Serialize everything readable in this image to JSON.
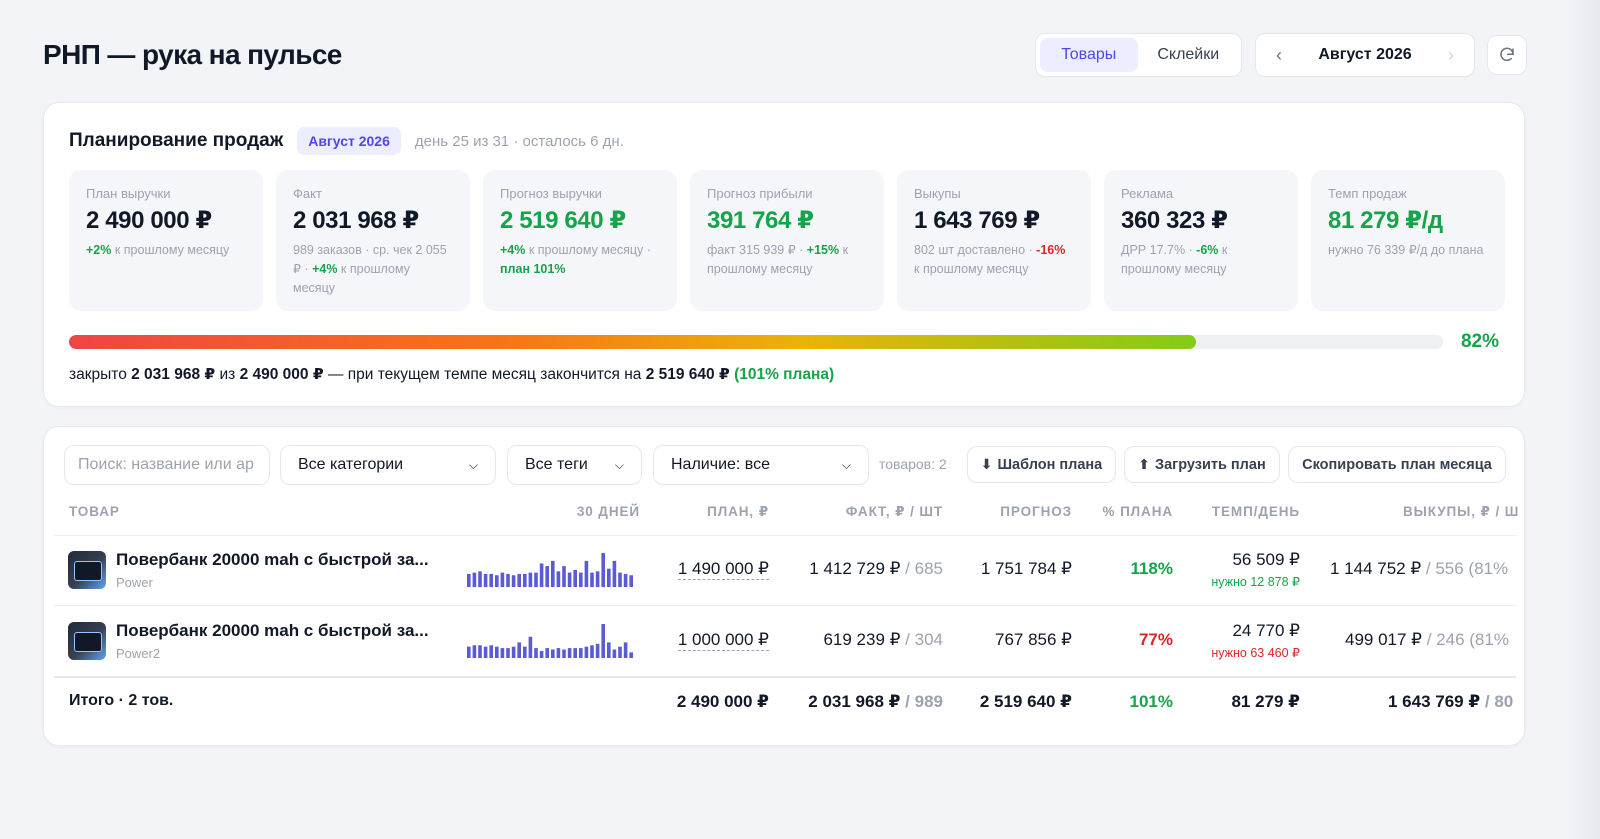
{
  "header": {
    "title": "РНП — рука на пульсе",
    "tabs": [
      {
        "label": "Товары",
        "active": true
      },
      {
        "label": "Склейки",
        "active": false
      }
    ],
    "month": {
      "prev": "‹",
      "label": "Август 2026",
      "next": "›"
    },
    "refresh_icon": "refresh-icon"
  },
  "plan": {
    "title": "Планирование продаж",
    "badge": "Август 2026",
    "subtitle": "день 25 из 31 · осталось 6 дн.",
    "kpis": {
      "plan": {
        "label": "План выручки",
        "value": "2 490 000 ₽",
        "d1": "+2%",
        "t1": " к прошлому месяцу"
      },
      "fact": {
        "label": "Факт",
        "value": "2 031 968 ₽",
        "t1": "989 заказов · ср. чек 2 055 ₽ · ",
        "d1": "+4%",
        "t2": " к прошлому месяцу"
      },
      "forecast": {
        "label": "Прогноз выручки",
        "value": "2 519 640 ₽",
        "d1": "+4%",
        "t1": " к прошлому месяцу · ",
        "d2": "план 101%"
      },
      "profit": {
        "label": "Прогноз прибыли",
        "value": "391 764 ₽",
        "t1": "факт 315 939 ₽ · ",
        "d1": "+15%",
        "t2": " к прошлому месяцу"
      },
      "buyouts": {
        "label": "Выкупы",
        "value": "1 643 769 ₽",
        "t1": "802 шт доставлено · ",
        "d1": "-16%",
        "t2": " к прошлому месяцу"
      },
      "ads": {
        "label": "Реклама",
        "value": "360 323 ₽",
        "t1": "ДРР 17.7% · ",
        "d1": "-6%",
        "t2": " к прошлому месяцу"
      },
      "pace": {
        "label": "Темп продаж",
        "value": "81 279 ₽/д",
        "t1": "нужно 76 339 ₽/д до плана"
      }
    },
    "progress": {
      "percent": 82,
      "percent_label": "82%",
      "t1": "закрыто ",
      "v1": "2 031 968 ₽",
      "t2": " из ",
      "v2": "2 490 000 ₽",
      "t3": " — при текущем темпе месяц закончится на ",
      "v3": "2 519 640 ₽",
      "v4": "(101% плана)"
    }
  },
  "filters": {
    "search_placeholder": "Поиск: название или ар",
    "category": "Все категории",
    "tags": "Все теги",
    "stock": "Наличие: все",
    "count": "товаров: 2",
    "btn_template": "Шаблон плана",
    "btn_upload": "Загрузить план",
    "btn_copy": "Скопировать план месяца"
  },
  "table": {
    "columns": {
      "product": "ТОВАР",
      "days30": "30 ДНЕЙ",
      "plan": "ПЛАН, ₽",
      "fact": "ФАКТ, ₽ / ШТ",
      "forecast": "ПРОГНОЗ",
      "pct": "% ПЛАНА",
      "pace": "ТЕМП/ДЕНЬ",
      "buyouts": "ВЫКУПЫ, ₽ / Ш"
    },
    "rows": [
      {
        "name": "Повербанк 20000 mah с быстрой за...",
        "brand": "Power",
        "plan": "1 490 000 ₽",
        "fact": "1 412 729 ₽",
        "fact_qty": " / 685",
        "forecast": "1 751 784 ₽",
        "pct": "118%",
        "pace": "56 509 ₽",
        "need": "нужно 12 878 ₽",
        "buyouts": "1 144 752 ₽",
        "buyouts_qty": " / 556 (81%"
      },
      {
        "name": "Повербанк 20000 mah с быстрой за...",
        "brand": "Power2",
        "plan": "1 000 000 ₽",
        "fact": "619 239 ₽",
        "fact_qty": " / 304",
        "forecast": "767 856 ₽",
        "pct": "77%",
        "pace": "24 770 ₽",
        "need": "нужно 63 460 ₽",
        "buyouts": "499 017 ₽",
        "buyouts_qty": " / 246 (81%"
      }
    ],
    "total": {
      "label": "Итого · 2 тов.",
      "plan": "2 490 000 ₽",
      "fact": "2 031 968 ₽",
      "fact_qty": " / 989",
      "forecast": "2 519 640 ₽",
      "pct": "101%",
      "pace": "81 279 ₽",
      "buyouts": "1 643 769 ₽",
      "buyouts_qty": " / 80"
    }
  },
  "chart_data": [
    {
      "type": "bar",
      "values": [
        5,
        5.5,
        6,
        5,
        5,
        4.5,
        5.5,
        5,
        4.5,
        5,
        5,
        5.5,
        5.5,
        9,
        8,
        10,
        6,
        8,
        5.5,
        6.5,
        5.5,
        10,
        5.5,
        6,
        13,
        7,
        10,
        5.5,
        5,
        4.5
      ],
      "color": "#5b5bd6"
    },
    {
      "type": "bar",
      "values": [
        4,
        4.5,
        4.5,
        4,
        4.5,
        4,
        3.5,
        3.5,
        4,
        5.5,
        4,
        7.5,
        3.5,
        2.5,
        3.5,
        3,
        3.5,
        3,
        3.5,
        3.5,
        3.5,
        4,
        4.5,
        5,
        12,
        5.5,
        3,
        4,
        5.5,
        2
      ],
      "color": "#5b5bd6"
    }
  ],
  "colors": {
    "accent": "#4f46e5",
    "green": "#16a34a",
    "red": "#dc2626",
    "bars": "#5b5bd6"
  }
}
